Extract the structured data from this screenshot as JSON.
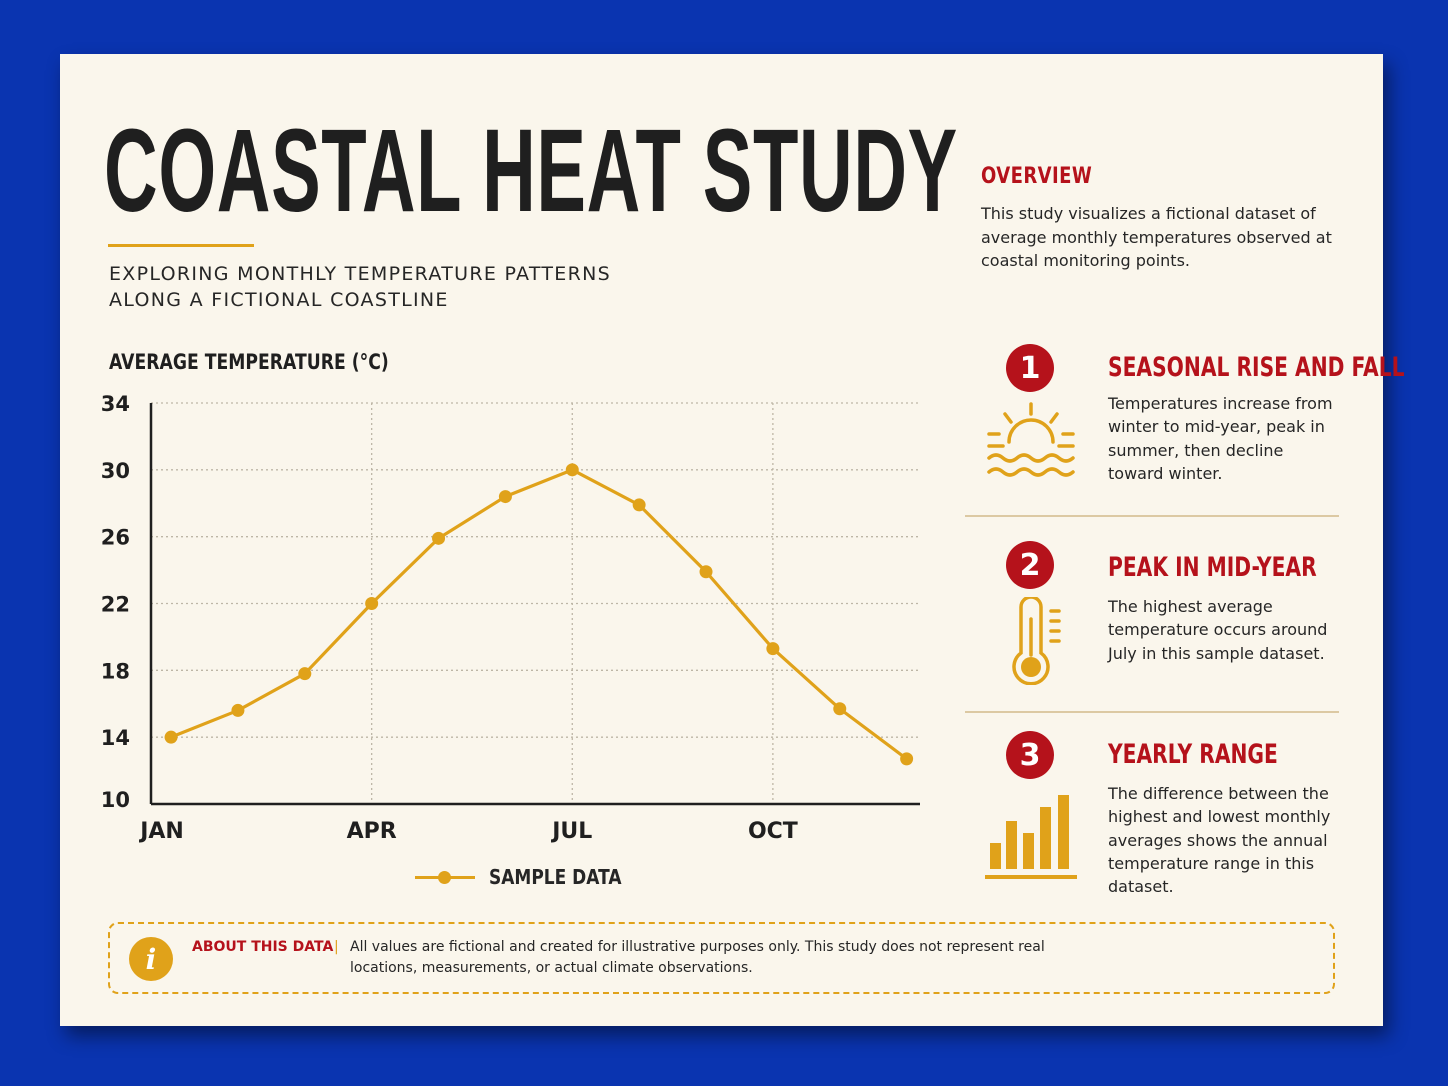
{
  "title": "COASTAL HEAT STUDY",
  "subtitle_line1": "EXPLORING MONTHLY TEMPERATURE PATTERNS",
  "subtitle_line2": "ALONG A FICTIONAL COASTLINE",
  "overview": {
    "heading": "OVERVIEW",
    "text": "This study visualizes a fictional dataset of average monthly temperatures observed at coastal monitoring points."
  },
  "features": [
    {
      "number": "1",
      "icon": "sun-over-waves-icon",
      "heading": "SEASONAL RISE AND FALL",
      "text": "Temperatures increase from winter to mid-year, peak in summer, then decline toward winter."
    },
    {
      "number": "2",
      "icon": "thermometer-icon",
      "heading": "PEAK IN MID-YEAR",
      "text": "The highest average temperature occurs around July in this sample dataset."
    },
    {
      "number": "3",
      "icon": "bar-chart-icon",
      "heading": "YEARLY RANGE",
      "text": "The difference between the highest and lowest monthly averages shows the annual temperature range in this dataset."
    }
  ],
  "note": {
    "label": "ABOUT THIS DATA",
    "separator": "|",
    "icon": "info-icon",
    "text": "All values are fictional and created for illustrative purposes only. This study does not represent real locations, measurements, or actual climate observations."
  },
  "colors": {
    "background": "#0a34b0",
    "card": "#faf6ec",
    "accent": "#e0a21a",
    "heading_red": "#b5121b",
    "text": "#262626"
  },
  "chart_data": {
    "type": "line",
    "ylabel": "AVERAGE TEMPERATURE (°C)",
    "xlabel": "",
    "ylim": [
      10,
      34
    ],
    "yticks": [
      10,
      14,
      18,
      22,
      26,
      30,
      34
    ],
    "x_tick_labels": [
      "JAN",
      "APR",
      "JUL",
      "OCT"
    ],
    "x_tick_months": [
      1,
      4,
      7,
      10
    ],
    "xlim": [
      0.7,
      12.2
    ],
    "grid": true,
    "legend_position": "bottom",
    "series": [
      {
        "name": "SAMPLE DATA",
        "color": "#e0a21a",
        "x": [
          1,
          2,
          3,
          4,
          5,
          6,
          7,
          8,
          9,
          10,
          11,
          12
        ],
        "values": [
          14.0,
          15.6,
          17.8,
          22.0,
          25.9,
          28.4,
          30.0,
          27.9,
          23.9,
          19.3,
          15.7,
          12.7
        ]
      }
    ]
  }
}
